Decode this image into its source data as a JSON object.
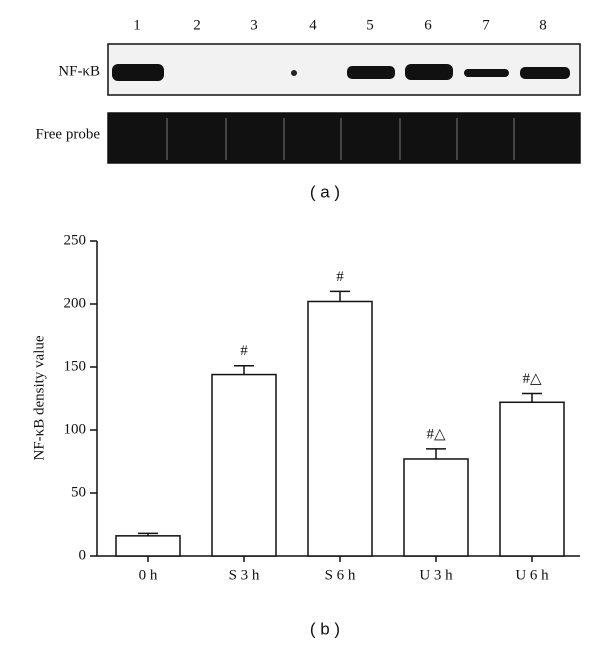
{
  "gel": {
    "lanes": [
      "1",
      "2",
      "3",
      "4",
      "5",
      "6",
      "7",
      "8"
    ],
    "rows": [
      "NF-κB",
      "Free probe"
    ],
    "caption": "( a )"
  },
  "chart_data": {
    "type": "bar",
    "caption": "( b )",
    "y_label": "NF-κB density value",
    "categories": [
      "0 h",
      "S 3 h",
      "S 6 h",
      "U 3 h",
      "U 6 h"
    ],
    "values": [
      16,
      144,
      202,
      77,
      122
    ],
    "errors": [
      2,
      7,
      8,
      8,
      7
    ],
    "annotations": [
      null,
      "#",
      "#",
      "#△",
      "#△"
    ],
    "color": "#ffffff",
    "ylim": [
      0,
      250
    ],
    "yticks": [
      0,
      50,
      100,
      150,
      200,
      250
    ],
    "grid": false
  }
}
